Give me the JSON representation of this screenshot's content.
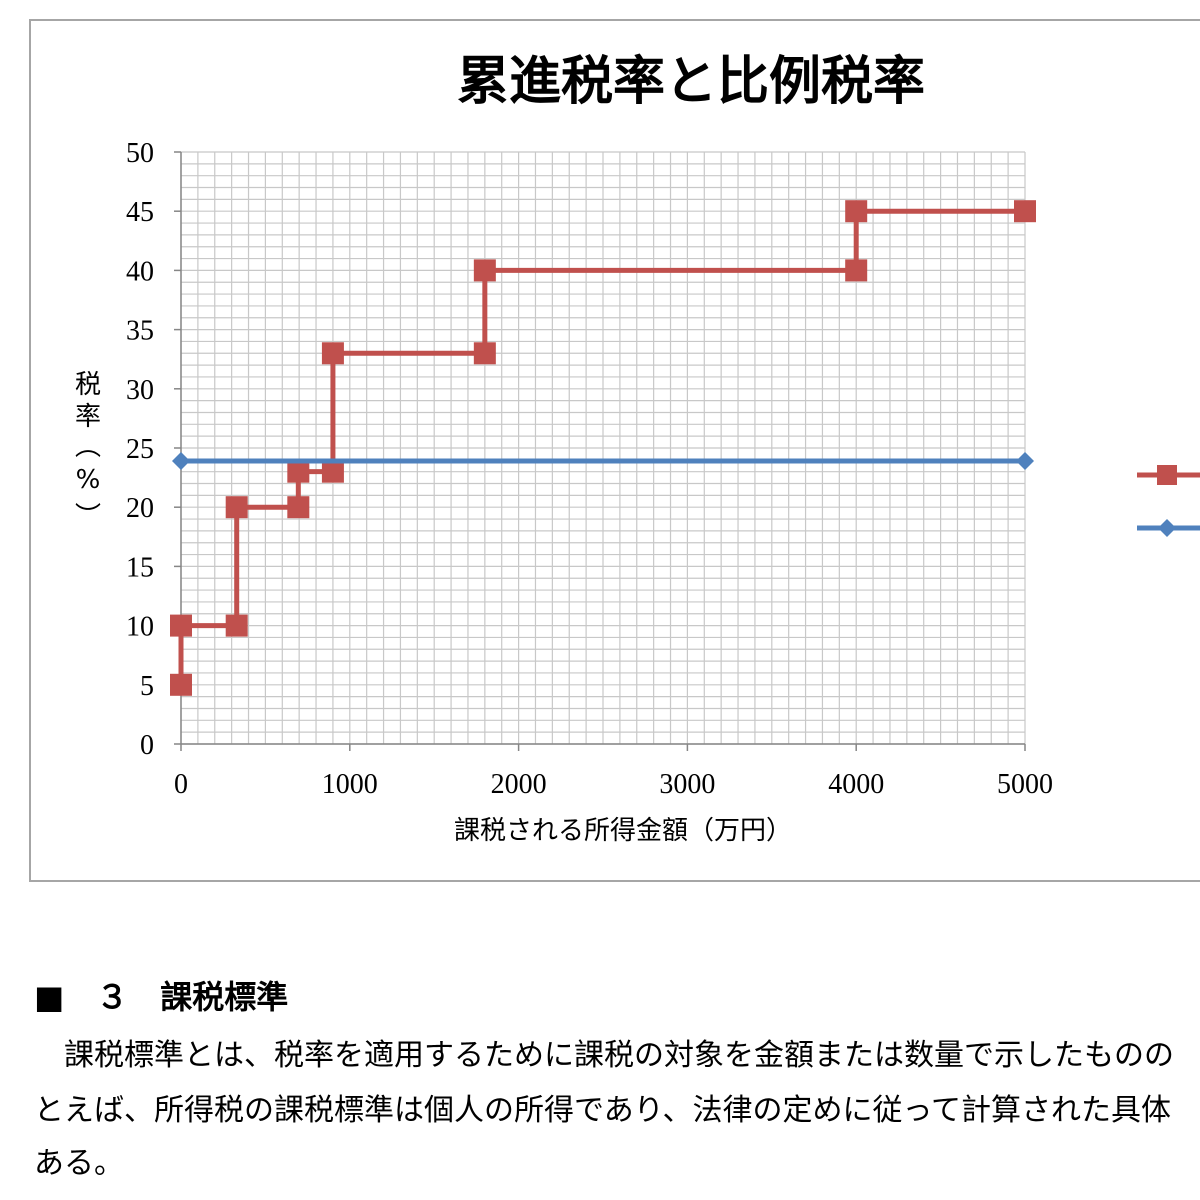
{
  "chart_data": {
    "type": "line",
    "title": "累進税率と比例税率",
    "xlabel": "課税される所得金額（万円）",
    "ylabel": "税率（%）",
    "xlim": [
      0,
      5000
    ],
    "ylim": [
      0,
      50
    ],
    "x_ticks": [
      "0",
      "1000",
      "2000",
      "3000",
      "4000",
      "5000"
    ],
    "y_ticks": [
      "0",
      "5",
      "10",
      "15",
      "20",
      "25",
      "30",
      "35",
      "40",
      "45",
      "50"
    ],
    "grid": true,
    "legend_position": "right",
    "series": [
      {
        "marker": "square",
        "color": "#c0504d",
        "points": [
          [
            0,
            5
          ],
          [
            0,
            10
          ],
          [
            330,
            10
          ],
          [
            330,
            20
          ],
          [
            695,
            20
          ],
          [
            695,
            23
          ],
          [
            900,
            23
          ],
          [
            900,
            33
          ],
          [
            1800,
            33
          ],
          [
            1800,
            40
          ],
          [
            4000,
            40
          ],
          [
            4000,
            45
          ],
          [
            5000,
            45
          ]
        ]
      },
      {
        "marker": "diamond",
        "color": "#4f81bd",
        "points": [
          [
            0,
            23.9
          ],
          [
            5000,
            23.9
          ]
        ]
      }
    ]
  },
  "section": {
    "heading": "■　３　課税標準",
    "lines": [
      "　課税標準とは、税率を適用するために課税の対象を金額または数量で示したものの",
      "とえば、所得税の課税標準は個人の所得であり、法律の定めに従って計算された具体",
      "ある。"
    ]
  }
}
